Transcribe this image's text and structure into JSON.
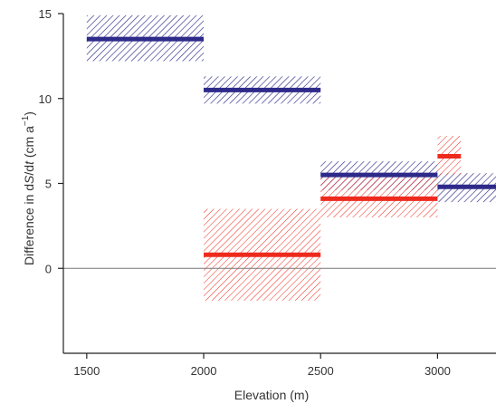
{
  "chart_data": {
    "type": "bar",
    "title": "",
    "xlabel": "Elevation (m)",
    "ylabel_prefix": "Difference in d",
    "ylabel_S": "S",
    "ylabel_slash": "/d",
    "ylabel_t": "t",
    "ylabel_units_open": "  (cm a",
    "ylabel_units_exp": "−1",
    "ylabel_units_close": ")",
    "xlim": [
      1400,
      3250
    ],
    "ylim": [
      -5,
      15
    ],
    "x_ticks": [
      1500,
      2000,
      2500,
      3000
    ],
    "x_tick_labels": [
      "1500",
      "2000",
      "2500",
      "3000"
    ],
    "y_ticks": [
      0,
      5,
      10,
      15
    ],
    "y_tick_labels": [
      "0",
      "5",
      "10",
      "15"
    ],
    "zero_line": true,
    "colors": {
      "blue": "#2e2a8a",
      "red": "#ee2a1d"
    },
    "series": [
      {
        "color_key": "blue",
        "values": [
          {
            "x0": 1500,
            "x1": 2000,
            "y": 13.5,
            "lo": 12.2,
            "hi": 14.9
          },
          {
            "x0": 2000,
            "x1": 2500,
            "y": 10.5,
            "lo": 9.7,
            "hi": 11.3
          },
          {
            "x0": 2500,
            "x1": 3000,
            "y": 5.5,
            "lo": 4.6,
            "hi": 6.3
          },
          {
            "x0": 3000,
            "x1": 3250,
            "y": 4.8,
            "lo": 3.9,
            "hi": 5.6
          }
        ]
      },
      {
        "color_key": "red",
        "values": [
          {
            "x0": 2000,
            "x1": 2500,
            "y": 0.8,
            "lo": -1.9,
            "hi": 3.5
          },
          {
            "x0": 2500,
            "x1": 3000,
            "y": 4.1,
            "lo": 3.0,
            "hi": 5.4
          },
          {
            "x0": 3000,
            "x1": 3100,
            "y": 6.6,
            "lo": 5.5,
            "hi": 7.8
          }
        ]
      }
    ]
  }
}
